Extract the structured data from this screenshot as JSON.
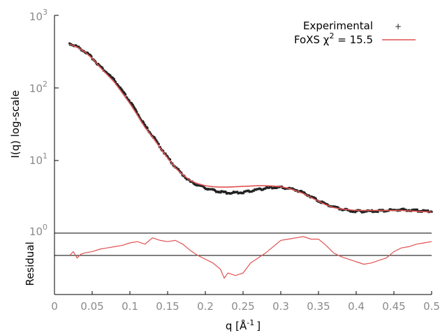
{
  "chart_data": [
    {
      "type": "scatter",
      "scale": {
        "x": "linear",
        "y": "log"
      },
      "ylabel": "I(q) log-scale",
      "xlim": [
        0,
        0.5
      ],
      "ylim": [
        1,
        1000
      ],
      "y_ticks": [
        {
          "base": "10",
          "exp": "0"
        },
        {
          "base": "10",
          "exp": "1"
        },
        {
          "base": "10",
          "exp": "2"
        },
        {
          "base": "10",
          "exp": "3"
        }
      ],
      "legend": {
        "placement": "top-right",
        "entries": [
          {
            "name": "Experimental",
            "marker": "point",
            "color": "#222222"
          },
          {
            "name": "FoXS χ",
            "superscript": "2",
            "suffix": " = 15.5",
            "marker": "line",
            "color": "#e05252"
          }
        ]
      },
      "series": [
        {
          "name": "Experimental",
          "color": "#222222",
          "points": [
            [
              0.02,
              410
            ],
            [
              0.03,
              370
            ],
            [
              0.04,
              320
            ],
            [
              0.05,
              260
            ],
            [
              0.06,
              200
            ],
            [
              0.07,
              160
            ],
            [
              0.08,
              125
            ],
            [
              0.09,
              90
            ],
            [
              0.1,
              65
            ],
            [
              0.11,
              45
            ],
            [
              0.12,
              30
            ],
            [
              0.13,
              22
            ],
            [
              0.14,
              15.5
            ],
            [
              0.15,
              11
            ],
            [
              0.16,
              8.2
            ],
            [
              0.17,
              6.4
            ],
            [
              0.18,
              5.1
            ],
            [
              0.19,
              4.6
            ],
            [
              0.2,
              4.2
            ],
            [
              0.21,
              3.9
            ],
            [
              0.22,
              3.7
            ],
            [
              0.23,
              3.6
            ],
            [
              0.24,
              3.6
            ],
            [
              0.25,
              3.65
            ],
            [
              0.26,
              3.8
            ],
            [
              0.27,
              4.0
            ],
            [
              0.28,
              4.15
            ],
            [
              0.29,
              4.25
            ],
            [
              0.3,
              4.25
            ],
            [
              0.31,
              4.15
            ],
            [
              0.32,
              3.95
            ],
            [
              0.33,
              3.6
            ],
            [
              0.34,
              3.2
            ],
            [
              0.35,
              2.8
            ],
            [
              0.36,
              2.5
            ],
            [
              0.37,
              2.3
            ],
            [
              0.38,
              2.15
            ],
            [
              0.39,
              2.05
            ],
            [
              0.4,
              2.0
            ],
            [
              0.42,
              2.0
            ],
            [
              0.44,
              2.05
            ],
            [
              0.46,
              2.1
            ],
            [
              0.48,
              2.05
            ],
            [
              0.5,
              2.0
            ]
          ]
        },
        {
          "name": "FoXS",
          "color": "#e05252",
          "points": [
            [
              0.02,
              400
            ],
            [
              0.03,
              365
            ],
            [
              0.04,
              315
            ],
            [
              0.05,
              255
            ],
            [
              0.06,
              195
            ],
            [
              0.07,
              152
            ],
            [
              0.08,
              118
            ],
            [
              0.09,
              85
            ],
            [
              0.1,
              61
            ],
            [
              0.11,
              42
            ],
            [
              0.12,
              28.5
            ],
            [
              0.13,
              21
            ],
            [
              0.14,
              15
            ],
            [
              0.15,
              10.8
            ],
            [
              0.16,
              8.0
            ],
            [
              0.17,
              6.4
            ],
            [
              0.18,
              5.3
            ],
            [
              0.19,
              4.8
            ],
            [
              0.2,
              4.5
            ],
            [
              0.21,
              4.35
            ],
            [
              0.22,
              4.3
            ],
            [
              0.23,
              4.3
            ],
            [
              0.24,
              4.35
            ],
            [
              0.25,
              4.4
            ],
            [
              0.26,
              4.45
            ],
            [
              0.27,
              4.5
            ],
            [
              0.28,
              4.5
            ],
            [
              0.29,
              4.45
            ],
            [
              0.3,
              4.35
            ],
            [
              0.31,
              4.15
            ],
            [
              0.32,
              3.85
            ],
            [
              0.33,
              3.5
            ],
            [
              0.34,
              3.1
            ],
            [
              0.35,
              2.75
            ],
            [
              0.36,
              2.45
            ],
            [
              0.37,
              2.25
            ],
            [
              0.38,
              2.15
            ],
            [
              0.39,
              2.1
            ],
            [
              0.4,
              2.05
            ],
            [
              0.42,
              2.05
            ],
            [
              0.44,
              2.05
            ],
            [
              0.46,
              2.05
            ],
            [
              0.48,
              2.0
            ],
            [
              0.5,
              1.95
            ]
          ]
        }
      ]
    },
    {
      "type": "line",
      "ylabel": "Residual",
      "xlabel_main": "q [Å",
      "xlabel_sup": "-1",
      "xlabel_end": "]",
      "xlim": [
        0,
        0.5
      ],
      "x_ticks": [
        "0",
        "0.05",
        "0.1",
        "0.15",
        "0.2",
        "0.25",
        "0.3",
        "0.35",
        "0.4",
        "0.45",
        "0.5"
      ],
      "reference_line": 0,
      "series": [
        {
          "name": "Residual",
          "color": "#e05252",
          "points": [
            [
              0.02,
              0.0
            ],
            [
              0.025,
              0.15
            ],
            [
              0.03,
              -0.1
            ],
            [
              0.035,
              0.05
            ],
            [
              0.04,
              0.1
            ],
            [
              0.05,
              0.15
            ],
            [
              0.06,
              0.25
            ],
            [
              0.07,
              0.3
            ],
            [
              0.08,
              0.35
            ],
            [
              0.09,
              0.4
            ],
            [
              0.1,
              0.5
            ],
            [
              0.11,
              0.55
            ],
            [
              0.12,
              0.45
            ],
            [
              0.13,
              0.7
            ],
            [
              0.14,
              0.6
            ],
            [
              0.15,
              0.55
            ],
            [
              0.16,
              0.6
            ],
            [
              0.17,
              0.45
            ],
            [
              0.18,
              0.2
            ],
            [
              0.19,
              0.0
            ],
            [
              0.2,
              -0.15
            ],
            [
              0.21,
              -0.3
            ],
            [
              0.22,
              -0.55
            ],
            [
              0.225,
              -0.9
            ],
            [
              0.23,
              -0.7
            ],
            [
              0.24,
              -0.8
            ],
            [
              0.25,
              -0.7
            ],
            [
              0.26,
              -0.3
            ],
            [
              0.27,
              -0.1
            ],
            [
              0.28,
              0.1
            ],
            [
              0.29,
              0.35
            ],
            [
              0.3,
              0.6
            ],
            [
              0.31,
              0.65
            ],
            [
              0.32,
              0.7
            ],
            [
              0.33,
              0.75
            ],
            [
              0.34,
              0.65
            ],
            [
              0.35,
              0.65
            ],
            [
              0.36,
              0.4
            ],
            [
              0.37,
              0.1
            ],
            [
              0.38,
              -0.05
            ],
            [
              0.39,
              -0.15
            ],
            [
              0.4,
              -0.25
            ],
            [
              0.41,
              -0.35
            ],
            [
              0.42,
              -0.3
            ],
            [
              0.43,
              -0.2
            ],
            [
              0.44,
              -0.1
            ],
            [
              0.45,
              0.15
            ],
            [
              0.46,
              0.3
            ],
            [
              0.47,
              0.35
            ],
            [
              0.48,
              0.45
            ],
            [
              0.49,
              0.5
            ],
            [
              0.5,
              0.55
            ]
          ]
        }
      ]
    }
  ]
}
